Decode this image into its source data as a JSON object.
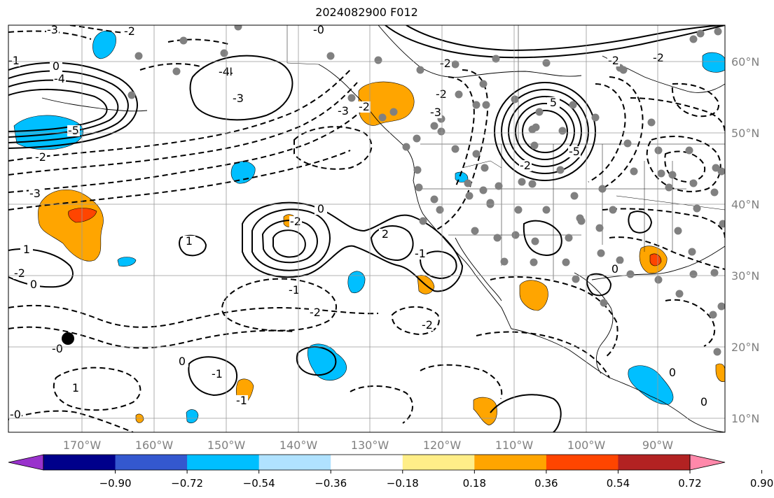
{
  "title": "2024082900 F012",
  "map": {
    "lon_labels": [
      "170°W",
      "160°W",
      "150°W",
      "140°W",
      "130°W",
      "120°W",
      "110°W",
      "100°W",
      "90°W"
    ],
    "lat_labels": [
      "60°N",
      "50°N",
      "40°N",
      "30°N",
      "20°N",
      "10°N"
    ],
    "grid_color": "#999999",
    "tick_label_color": "#808080",
    "station_color": "#808080"
  },
  "contour_labels": [
    {
      "text": "-3"
    },
    {
      "text": "-2"
    },
    {
      "text": "-1"
    },
    {
      "text": "0"
    },
    {
      "text": "-4"
    },
    {
      "text": "-5"
    },
    {
      "text": "-2"
    },
    {
      "text": "-4"
    },
    {
      "text": "-3"
    },
    {
      "text": "-2"
    },
    {
      "text": "-3"
    },
    {
      "text": "-2"
    },
    {
      "text": "-0"
    },
    {
      "text": "-2"
    },
    {
      "text": "-3"
    },
    {
      "text": "5"
    },
    {
      "text": "-2"
    },
    {
      "text": "-3"
    },
    {
      "text": "-2"
    },
    {
      "text": "0"
    },
    {
      "text": "1"
    },
    {
      "text": "-2"
    },
    {
      "text": "2"
    },
    {
      "text": "-1"
    },
    {
      "text": "0"
    },
    {
      "text": "-1"
    },
    {
      "text": "-1"
    },
    {
      "text": "-2"
    },
    {
      "text": "-2"
    },
    {
      "text": "0"
    },
    {
      "text": "1"
    },
    {
      "text": "-1"
    },
    {
      "text": "-0"
    },
    {
      "text": "-4"
    },
    {
      "text": "-2"
    },
    {
      "text": "-2"
    },
    {
      "text": "-5"
    },
    {
      "text": "0"
    },
    {
      "text": "1"
    },
    {
      "text": "0"
    },
    {
      "text": "0"
    },
    {
      "text": "-0"
    }
  ],
  "colorbar": {
    "colors": [
      "#9932cc",
      "#00008b",
      "#3458cf",
      "#00bfff",
      "#b0e2ff",
      "#ffffff",
      "#ffee88",
      "#ffa500",
      "#ff4500",
      "#b22222",
      "#ff88aa"
    ],
    "tick_labels": [
      "−0.90",
      "−0.72",
      "−0.54",
      "−0.36",
      "−0.18",
      "0.18",
      "0.36",
      "0.54",
      "0.72",
      "0.90"
    ]
  }
}
